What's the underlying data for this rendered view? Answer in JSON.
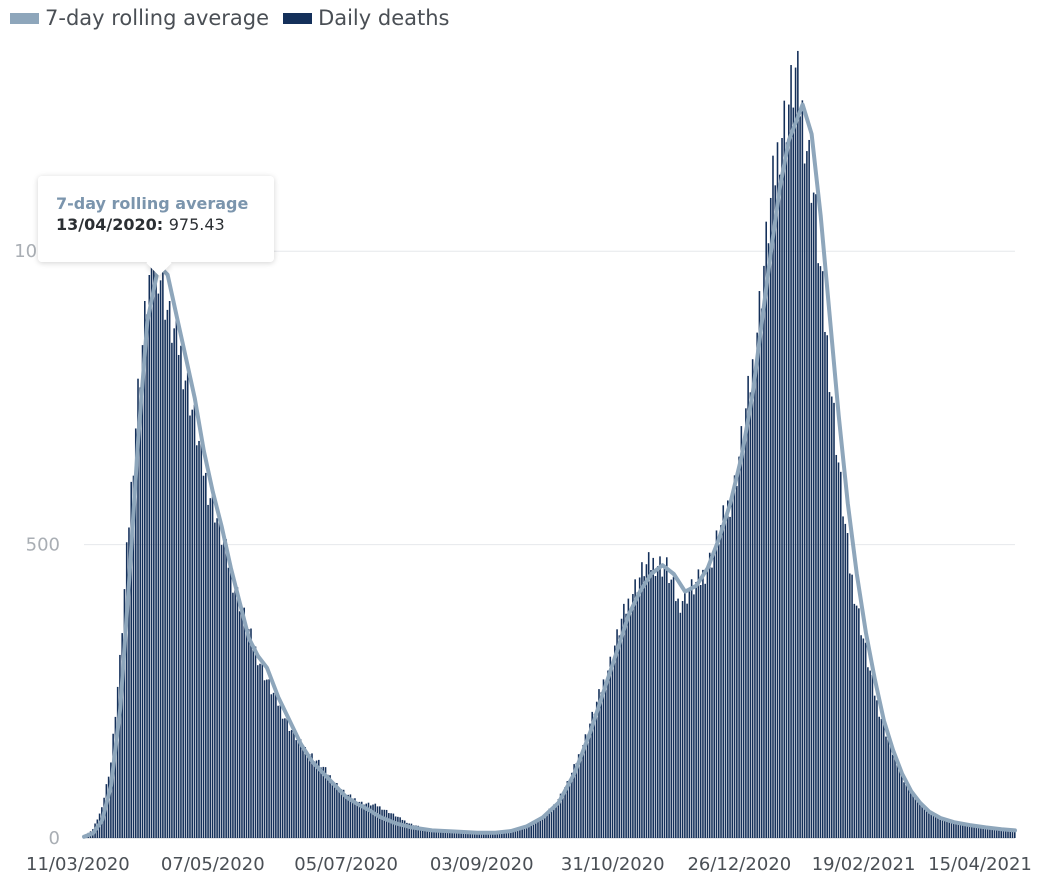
{
  "legend": [
    {
      "name": "7-day rolling average",
      "color": "#8ea6bb"
    },
    {
      "name": "Daily deaths",
      "color": "#14305a"
    }
  ],
  "tooltip": {
    "series": "7-day rolling average",
    "date": "13/04/2020",
    "value": "975.43"
  },
  "chart_data": {
    "type": "bar",
    "title": "",
    "xlabel": "",
    "ylabel": "",
    "x_range": [
      "11/03/2020",
      "27/04/2021"
    ],
    "ylim": [
      0,
      1360
    ],
    "y_ticks": [
      "0",
      "500",
      "1000"
    ],
    "x_tick_labels": [
      "11/03/2020",
      "07/05/2020",
      "05/07/2020",
      "03/09/2020",
      "31/10/2020",
      "26/12/2020",
      "19/02/2021",
      "15/04/2021"
    ],
    "grid": true,
    "legend_position": "top-left",
    "series": [
      {
        "name": "Daily deaths",
        "kind": "bar",
        "points": [
          [
            "11/03/2020",
            2
          ],
          [
            "15/03/2020",
            15
          ],
          [
            "19/03/2020",
            50
          ],
          [
            "23/03/2020",
            130
          ],
          [
            "27/03/2020",
            300
          ],
          [
            "31/03/2020",
            540
          ],
          [
            "04/04/2020",
            760
          ],
          [
            "08/04/2020",
            920
          ],
          [
            "11/04/2020",
            1010
          ],
          [
            "14/04/2020",
            960
          ],
          [
            "18/04/2020",
            880
          ],
          [
            "22/04/2020",
            840
          ],
          [
            "26/04/2020",
            770
          ],
          [
            "30/04/2020",
            690
          ],
          [
            "04/05/2020",
            610
          ],
          [
            "08/05/2020",
            560
          ],
          [
            "12/05/2020",
            500
          ],
          [
            "16/05/2020",
            440
          ],
          [
            "20/05/2020",
            390
          ],
          [
            "24/05/2020",
            340
          ],
          [
            "28/05/2020",
            300
          ],
          [
            "01/06/2020",
            260
          ],
          [
            "05/06/2020",
            230
          ],
          [
            "10/06/2020",
            190
          ],
          [
            "15/06/2020",
            160
          ],
          [
            "20/06/2020",
            140
          ],
          [
            "25/06/2020",
            120
          ],
          [
            "30/06/2020",
            95
          ],
          [
            "05/07/2020",
            75
          ],
          [
            "12/07/2020",
            60
          ],
          [
            "19/07/2020",
            55
          ],
          [
            "26/07/2020",
            40
          ],
          [
            "02/08/2020",
            25
          ],
          [
            "10/08/2020",
            15
          ],
          [
            "18/08/2020",
            12
          ],
          [
            "26/08/2020",
            10
          ],
          [
            "03/09/2020",
            9
          ],
          [
            "10/09/2020",
            8
          ],
          [
            "17/09/2020",
            12
          ],
          [
            "24/09/2020",
            20
          ],
          [
            "30/09/2020",
            35
          ],
          [
            "06/10/2020",
            60
          ],
          [
            "12/10/2020",
            100
          ],
          [
            "18/10/2020",
            160
          ],
          [
            "24/10/2020",
            230
          ],
          [
            "30/10/2020",
            300
          ],
          [
            "04/11/2020",
            370
          ],
          [
            "09/11/2020",
            420
          ],
          [
            "14/11/2020",
            460
          ],
          [
            "19/11/2020",
            470
          ],
          [
            "24/11/2020",
            460
          ],
          [
            "29/11/2020",
            400
          ],
          [
            "04/12/2020",
            420
          ],
          [
            "09/12/2020",
            440
          ],
          [
            "14/12/2020",
            480
          ],
          [
            "19/12/2020",
            540
          ],
          [
            "24/12/2020",
            600
          ],
          [
            "28/12/2020",
            700
          ],
          [
            "01/01/2021",
            800
          ],
          [
            "05/01/2021",
            940
          ],
          [
            "09/01/2021",
            1080
          ],
          [
            "13/01/2021",
            1190
          ],
          [
            "17/01/2021",
            1250
          ],
          [
            "20/01/2021",
            1300
          ],
          [
            "24/01/2021",
            1210
          ],
          [
            "28/01/2021",
            1100
          ],
          [
            "01/02/2021",
            920
          ],
          [
            "05/02/2021",
            760
          ],
          [
            "09/02/2021",
            600
          ],
          [
            "13/02/2021",
            460
          ],
          [
            "17/02/2021",
            380
          ],
          [
            "21/02/2021",
            300
          ],
          [
            "25/02/2021",
            230
          ],
          [
            "01/03/2021",
            180
          ],
          [
            "05/03/2021",
            135
          ],
          [
            "09/03/2021",
            100
          ],
          [
            "13/03/2021",
            75
          ],
          [
            "17/03/2021",
            55
          ],
          [
            "21/03/2021",
            42
          ],
          [
            "25/03/2021",
            34
          ],
          [
            "30/03/2021",
            27
          ],
          [
            "05/04/2021",
            22
          ],
          [
            "12/04/2021",
            18
          ],
          [
            "19/04/2021",
            14
          ],
          [
            "27/04/2021",
            12
          ]
        ]
      },
      {
        "name": "7-day rolling average",
        "kind": "line",
        "points": [
          [
            "11/03/2020",
            2
          ],
          [
            "15/03/2020",
            8
          ],
          [
            "19/03/2020",
            30
          ],
          [
            "23/03/2020",
            90
          ],
          [
            "27/03/2020",
            220
          ],
          [
            "31/03/2020",
            440
          ],
          [
            "04/04/2020",
            680
          ],
          [
            "08/04/2020",
            880
          ],
          [
            "13/04/2020",
            975.43
          ],
          [
            "17/04/2020",
            960
          ],
          [
            "21/04/2020",
            890
          ],
          [
            "25/04/2020",
            820
          ],
          [
            "29/04/2020",
            750
          ],
          [
            "03/05/2020",
            660
          ],
          [
            "07/05/2020",
            590
          ],
          [
            "11/05/2020",
            530
          ],
          [
            "15/05/2020",
            460
          ],
          [
            "19/05/2020",
            400
          ],
          [
            "23/05/2020",
            340
          ],
          [
            "27/05/2020",
            310
          ],
          [
            "31/05/2020",
            290
          ],
          [
            "05/06/2020",
            240
          ],
          [
            "10/06/2020",
            200
          ],
          [
            "15/06/2020",
            160
          ],
          [
            "20/06/2020",
            130
          ],
          [
            "25/06/2020",
            110
          ],
          [
            "30/06/2020",
            90
          ],
          [
            "05/07/2020",
            70
          ],
          [
            "10/07/2020",
            58
          ],
          [
            "15/07/2020",
            48
          ],
          [
            "20/07/2020",
            36
          ],
          [
            "27/07/2020",
            25
          ],
          [
            "03/08/2020",
            18
          ],
          [
            "12/08/2020",
            13
          ],
          [
            "22/08/2020",
            11
          ],
          [
            "01/09/2020",
            9
          ],
          [
            "09/09/2020",
            9
          ],
          [
            "16/09/2020",
            12
          ],
          [
            "23/09/2020",
            20
          ],
          [
            "30/09/2020",
            35
          ],
          [
            "07/10/2020",
            60
          ],
          [
            "14/10/2020",
            110
          ],
          [
            "21/10/2020",
            180
          ],
          [
            "27/10/2020",
            250
          ],
          [
            "02/11/2020",
            320
          ],
          [
            "07/11/2020",
            380
          ],
          [
            "12/11/2020",
            420
          ],
          [
            "17/11/2020",
            450
          ],
          [
            "22/11/2020",
            465
          ],
          [
            "27/11/2020",
            450
          ],
          [
            "02/12/2020",
            420
          ],
          [
            "07/12/2020",
            430
          ],
          [
            "12/12/2020",
            460
          ],
          [
            "17/12/2020",
            510
          ],
          [
            "22/12/2020",
            570
          ],
          [
            "27/12/2020",
            650
          ],
          [
            "01/01/2021",
            760
          ],
          [
            "05/01/2021",
            880
          ],
          [
            "09/01/2021",
            1000
          ],
          [
            "13/01/2021",
            1110
          ],
          [
            "17/01/2021",
            1190
          ],
          [
            "21/01/2021",
            1230
          ],
          [
            "23/01/2021",
            1250
          ],
          [
            "27/01/2021",
            1200
          ],
          [
            "31/01/2021",
            1060
          ],
          [
            "04/02/2021",
            890
          ],
          [
            "08/02/2021",
            720
          ],
          [
            "12/02/2021",
            570
          ],
          [
            "16/02/2021",
            450
          ],
          [
            "20/02/2021",
            350
          ],
          [
            "24/02/2021",
            270
          ],
          [
            "28/02/2021",
            200
          ],
          [
            "04/03/2021",
            150
          ],
          [
            "08/03/2021",
            110
          ],
          [
            "12/03/2021",
            80
          ],
          [
            "16/03/2021",
            60
          ],
          [
            "20/03/2021",
            45
          ],
          [
            "25/03/2021",
            34
          ],
          [
            "31/03/2021",
            27
          ],
          [
            "07/04/2021",
            22
          ],
          [
            "14/04/2021",
            18
          ],
          [
            "21/04/2021",
            15
          ],
          [
            "27/04/2021",
            13
          ]
        ]
      }
    ]
  }
}
